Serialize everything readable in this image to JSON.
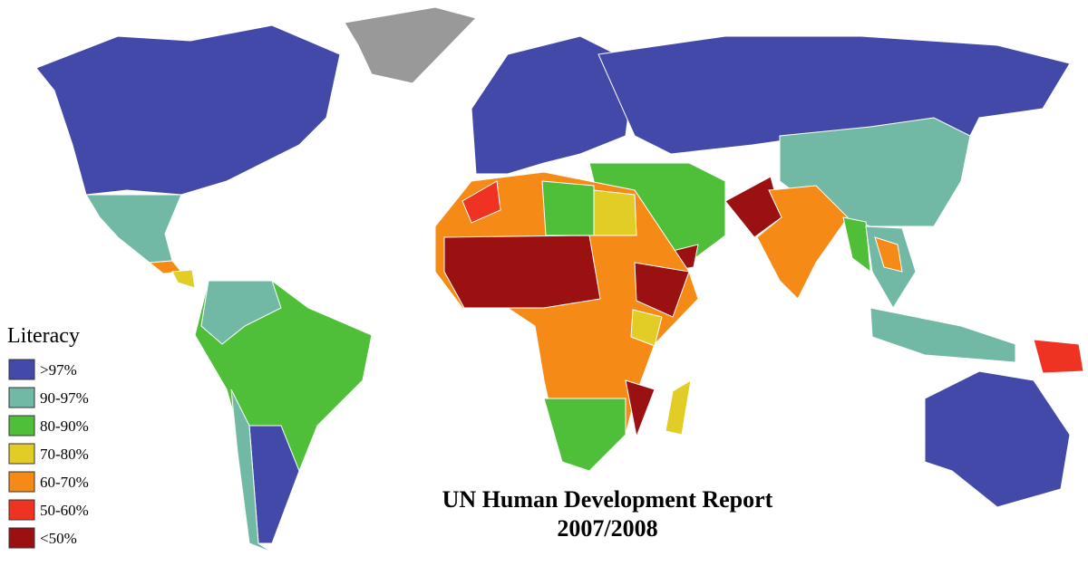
{
  "title": [
    "UN Human Development Report",
    "2007/2008"
  ],
  "legend": {
    "title": "Literacy",
    "items": [
      {
        "label": ">97%",
        "color": "#4349a8"
      },
      {
        "label": "90-97%",
        "color": "#72b9a5"
      },
      {
        "label": "80-90%",
        "color": "#4fbf3a"
      },
      {
        "label": "70-80%",
        "color": "#e2cd27"
      },
      {
        "label": "60-70%",
        "color": "#f58a16"
      },
      {
        "label": "50-60%",
        "color": "#ee3322"
      },
      {
        "label": "<50%",
        "color": "#9b1111"
      }
    ],
    "no_data_color": "#999999"
  }
}
